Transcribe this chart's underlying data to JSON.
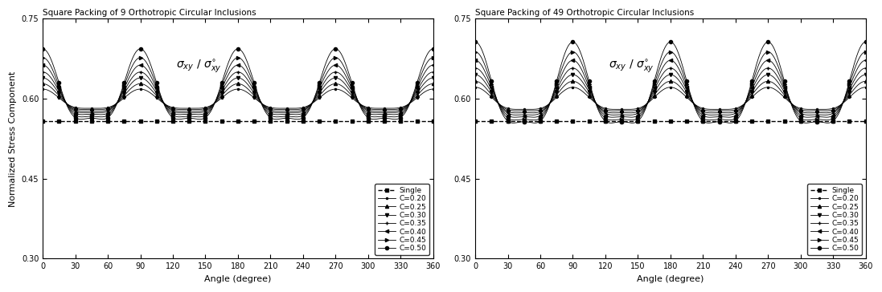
{
  "plot1_title": "Square Packing of 9 Orthotropic Circular Inclusions",
  "plot2_title": "Square Packing of 49 Orthotropic Circular Inclusions",
  "xlabel": "Angle (degree)",
  "ylabel": "Normalized Stress Component",
  "ylim": [
    0.3,
    0.75
  ],
  "yticks": [
    0.3,
    0.45,
    0.6,
    0.75
  ],
  "xticks": [
    0,
    30,
    60,
    90,
    120,
    150,
    180,
    210,
    240,
    270,
    300,
    330,
    360
  ],
  "single_value": 0.5575,
  "series": [
    {
      "label": "Single",
      "C": null,
      "marker": "s",
      "mean": 0.5575,
      "amp1": 0.0,
      "amp2": 0.0
    },
    {
      "label": "C=0.20",
      "C": 0.2,
      "marker": ".",
      "mean": 0.595,
      "amp1": 0.018,
      "amp2": 0.005
    },
    {
      "label": "C=0.25",
      "C": 0.25,
      "marker": "^",
      "mean": 0.597,
      "amp1": 0.024,
      "amp2": 0.007
    },
    {
      "label": "C=0.30",
      "C": 0.3,
      "marker": "v",
      "mean": 0.599,
      "amp1": 0.031,
      "amp2": 0.009
    },
    {
      "label": "C=0.35",
      "C": 0.35,
      "marker": "+",
      "mean": 0.601,
      "amp1": 0.038,
      "amp2": 0.011
    },
    {
      "label": "C=0.40",
      "C": 0.4,
      "marker": "<",
      "mean": 0.603,
      "amp1": 0.046,
      "amp2": 0.014
    },
    {
      "label": "C=0.45",
      "C": 0.45,
      "marker": ">",
      "mean": 0.605,
      "amp1": 0.055,
      "amp2": 0.017
    },
    {
      "label": "C=0.50",
      "C": 0.5,
      "marker": "o",
      "mean": 0.6075,
      "amp1": 0.065,
      "amp2": 0.021
    }
  ],
  "scales_plot1": 1.0,
  "scales_plot2": 1.15,
  "line_color": "black",
  "marker_size": 3,
  "legend_fontsize": 6.5,
  "title_fontsize": 7.5,
  "axis_fontsize": 8,
  "tick_fontsize": 7,
  "marker_every_deg": 15
}
